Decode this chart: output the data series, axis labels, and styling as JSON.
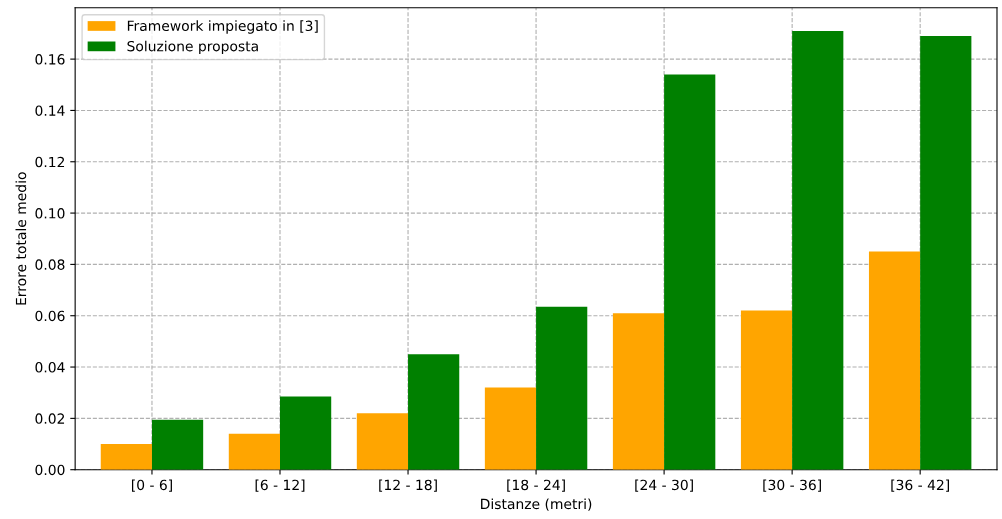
{
  "chart_data": {
    "type": "bar",
    "xlabel": "Distanze (metri)",
    "ylabel": "Errore totale medio",
    "categories": [
      "[0 - 6]",
      "[6 - 12]",
      "[12 - 18]",
      "[18 - 24]",
      "[24 - 30]",
      "[30 - 36]",
      "[36 - 42]"
    ],
    "series": [
      {
        "name": "Framework impiegato in [3]",
        "color": "#ffa500",
        "values": [
          0.01,
          0.014,
          0.022,
          0.032,
          0.061,
          0.062,
          0.085
        ]
      },
      {
        "name": "Soluzione proposta",
        "color": "#008000",
        "values": [
          0.0195,
          0.0285,
          0.045,
          0.0635,
          0.154,
          0.171,
          0.169
        ]
      }
    ],
    "ylim": [
      0,
      0.18
    ],
    "yticks": [
      {
        "value": 0,
        "label": "0.00"
      },
      {
        "value": 0.02,
        "label": "0.02"
      },
      {
        "value": 0.04,
        "label": "0.04"
      },
      {
        "value": 0.06,
        "label": "0.06"
      },
      {
        "value": 0.08,
        "label": "0.08"
      },
      {
        "value": 0.1,
        "label": "0.10"
      },
      {
        "value": 0.12,
        "label": "0.12"
      },
      {
        "value": 0.14,
        "label": "0.14"
      },
      {
        "value": 0.16,
        "label": "0.16"
      }
    ],
    "grid": true,
    "legend": "top left"
  }
}
